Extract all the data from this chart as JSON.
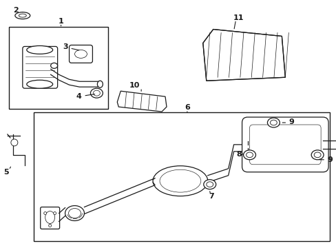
{
  "bg_color": "#ffffff",
  "line_color": "#1a1a1a",
  "fig_width": 4.89,
  "fig_height": 3.6,
  "dpi": 100,
  "label_fontsize": 8.0
}
